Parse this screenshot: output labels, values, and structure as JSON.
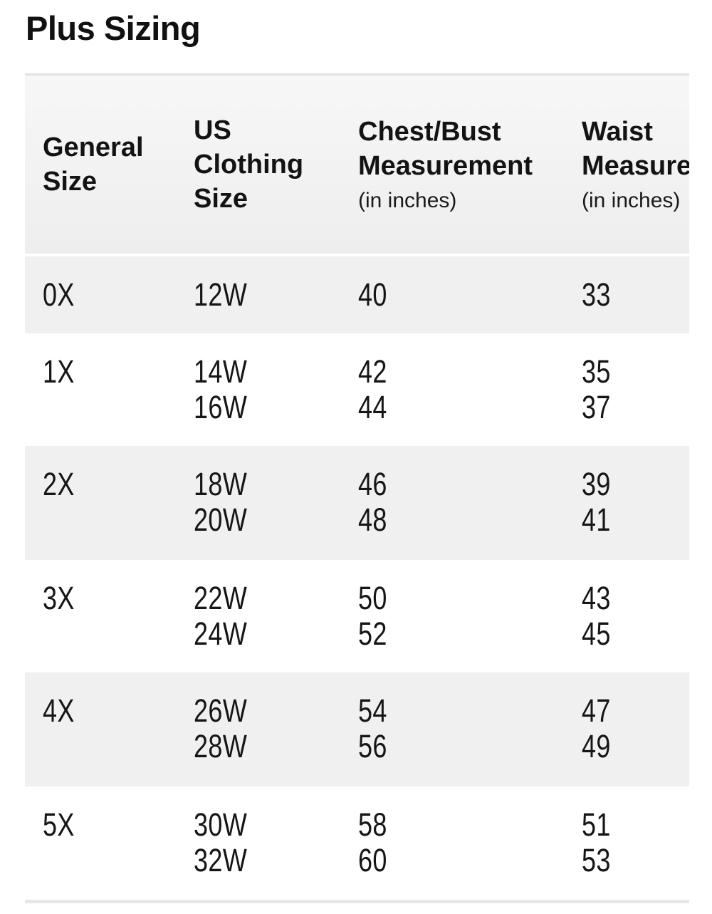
{
  "page": {
    "title": "Plus Sizing"
  },
  "table": {
    "columns": [
      {
        "id": "general",
        "lines": [
          "General",
          "Size"
        ],
        "note": ""
      },
      {
        "id": "us_clothing",
        "lines": [
          "US",
          "Clothing",
          "Size"
        ],
        "note": ""
      },
      {
        "id": "chest_bust",
        "lines": [
          "Chest/Bust",
          "Measurement"
        ],
        "note": "(in inches)"
      },
      {
        "id": "waist",
        "lines": [
          "Waist",
          "Measurement"
        ],
        "note": "(in inches)"
      }
    ],
    "rows": [
      {
        "general": "0X",
        "us": [
          "12W"
        ],
        "chest": [
          "40"
        ],
        "waist": [
          "33"
        ]
      },
      {
        "general": "1X",
        "us": [
          "14W",
          "16W"
        ],
        "chest": [
          "42",
          "44"
        ],
        "waist": [
          "35",
          "37"
        ]
      },
      {
        "general": "2X",
        "us": [
          "18W",
          "20W"
        ],
        "chest": [
          "46",
          "48"
        ],
        "waist": [
          "39",
          "41"
        ]
      },
      {
        "general": "3X",
        "us": [
          "22W",
          "24W"
        ],
        "chest": [
          "50",
          "52"
        ],
        "waist": [
          "43",
          "45"
        ]
      },
      {
        "general": "4X",
        "us": [
          "26W",
          "28W"
        ],
        "chest": [
          "54",
          "56"
        ],
        "waist": [
          "47",
          "49"
        ]
      },
      {
        "general": "5X",
        "us": [
          "30W",
          "32W"
        ],
        "chest": [
          "58",
          "60"
        ],
        "waist": [
          "51",
          "53"
        ]
      }
    ],
    "colors": {
      "header_bg": "#f2f2f2",
      "alt_row_bg": "#f0f0f0",
      "table_top_border": "#e2e2e2",
      "bottom_strip": "#e7e7e7",
      "text": "#161616"
    }
  }
}
